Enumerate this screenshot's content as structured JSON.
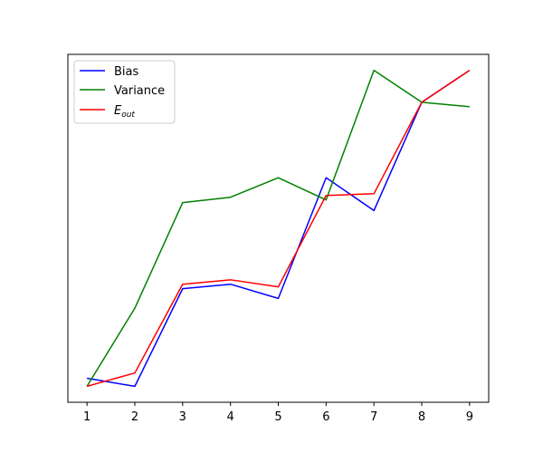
{
  "chart_data": {
    "type": "line",
    "x": [
      1,
      2,
      3,
      4,
      5,
      6,
      7,
      8,
      9
    ],
    "series": [
      {
        "name": "Bias",
        "color": "#0000ff",
        "values": [
          0.045,
          0.0,
          0.55,
          0.575,
          0.495,
          1.175,
          0.99,
          1.6,
          1.78
        ]
      },
      {
        "name": "Variance",
        "color": "#008000",
        "values": [
          0.0,
          0.44,
          1.035,
          1.065,
          1.175,
          1.05,
          1.78,
          1.6,
          1.575
        ]
      },
      {
        "name": "E_out",
        "legend_main": "E",
        "legend_sub": "out",
        "color": "#ff0000",
        "values": [
          0.0,
          0.075,
          0.575,
          0.6,
          0.56,
          1.075,
          1.085,
          1.6,
          1.78
        ]
      }
    ],
    "xlim": [
      0.6,
      9.4
    ],
    "ylim": [
      -0.09,
      1.87
    ],
    "xticks": [
      "1",
      "2",
      "3",
      "4",
      "5",
      "6",
      "7",
      "8",
      "9"
    ],
    "yticks_visible": false,
    "title": "",
    "xlabel": "",
    "ylabel": "",
    "grid": false,
    "legend_placement": "top-left"
  }
}
